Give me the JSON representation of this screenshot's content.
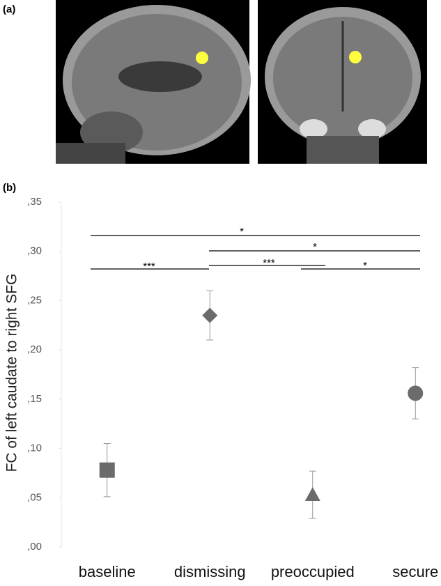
{
  "panel_a_label": "(a)",
  "chart_data": {
    "type": "point",
    "panel_label": "(b)",
    "ylabel": "FC of left caudate to right  SFG",
    "categories": [
      "baseline",
      "dismissing",
      "preoccupied",
      "secure"
    ],
    "values": [
      0.078,
      0.235,
      0.053,
      0.156
    ],
    "errors": [
      0.027,
      0.025,
      0.024,
      0.026
    ],
    "markers": [
      "square",
      "diamond",
      "triangle",
      "circle"
    ],
    "color": "#6b6b6b",
    "ylim": [
      0,
      0.35
    ],
    "yticks": [
      {
        "value": 0,
        "label": ",00"
      },
      {
        "value": 0.05,
        "label": ",05"
      },
      {
        "value": 0.1,
        "label": ",10"
      },
      {
        "value": 0.15,
        "label": ",15"
      },
      {
        "value": 0.2,
        "label": ",20"
      },
      {
        "value": 0.25,
        "label": ",25"
      },
      {
        "value": 0.3,
        "label": ",30"
      },
      {
        "value": 0.35,
        "label": ",35"
      }
    ],
    "significance": [
      "*",
      "*",
      "***",
      "***",
      "*"
    ]
  }
}
